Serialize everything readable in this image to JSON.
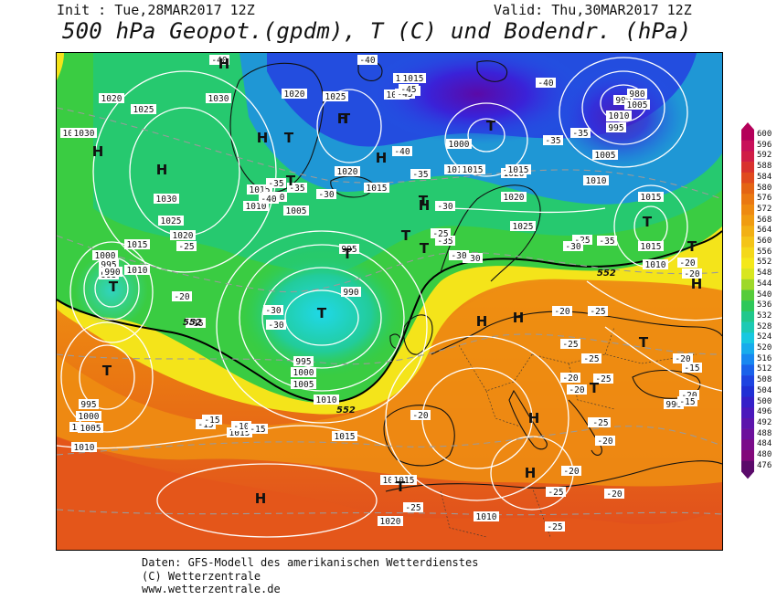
{
  "header": {
    "init": "Init : Tue,28MAR2017 12Z",
    "valid": "Valid: Thu,30MAR2017 12Z",
    "title": "500 hPa Geopot.(gpdm), T (C) und Bodendr. (hPa)"
  },
  "footer": {
    "line1": "Daten: GFS-Modell des amerikanischen Wetterdienstes",
    "line2": "(C) Wetterzentrale",
    "line3": "www.wetterzentrale.de"
  },
  "colors": {
    "lowest_violet": "#5a0a8a",
    "deep_blue": "#1e2fd8",
    "cyan": "#18c8e8",
    "green": "#2ecc4a",
    "yellow": "#f4e81a",
    "orange": "#ee8a10",
    "red": "#e0401a",
    "dark_red": "#c01030"
  },
  "legend": {
    "values": [
      "600",
      "596",
      "592",
      "588",
      "584",
      "580",
      "576",
      "572",
      "568",
      "564",
      "560",
      "556",
      "552",
      "548",
      "544",
      "540",
      "536",
      "532",
      "528",
      "524",
      "520",
      "516",
      "512",
      "508",
      "504",
      "500",
      "496",
      "492",
      "488",
      "484",
      "480",
      "476"
    ],
    "colors": [
      "#b4005a",
      "#c8105a",
      "#d01e46",
      "#d8322e",
      "#e04a1e",
      "#e46414",
      "#ea7812",
      "#ee8a10",
      "#f09c10",
      "#f2b014",
      "#f4c418",
      "#f4d81a",
      "#f4e81a",
      "#d8e620",
      "#9ed82a",
      "#56cc3a",
      "#2ec85a",
      "#20c88c",
      "#1ccab4",
      "#18c8e0",
      "#18acec",
      "#1888f0",
      "#1a62ea",
      "#1e44e0",
      "#2030d4",
      "#3420c8",
      "#4a18bc",
      "#5c14ac",
      "#6c109c",
      "#7a0c8a",
      "#82087a",
      "#5a0a6a"
    ]
  },
  "pressure_labels": [
    "1020",
    "1025",
    "1030",
    "1020",
    "1025",
    "1005",
    "1030",
    "1030",
    "1015",
    "1010",
    "1005",
    "995",
    "990",
    "995",
    "1030",
    "1025",
    "1020",
    "1015",
    "1010",
    "1000",
    "995",
    "990",
    "995",
    "1000",
    "1005",
    "1010",
    "1020",
    "1015",
    "1005",
    "1010",
    "1015",
    "1010",
    "1000",
    "990",
    "985",
    "995",
    "1005",
    "1010",
    "1015",
    "1020",
    "1025",
    "1015",
    "1010",
    "990",
    "995",
    "1000",
    "1005",
    "1010",
    "1020",
    "1015",
    "1020",
    "1025",
    "1015",
    "1015",
    "1020",
    "1015",
    "1010",
    "1015",
    "980",
    "1005",
    "1010"
  ],
  "temp_labels": [
    "-40",
    "-40",
    "-45",
    "-40",
    "-45",
    "-45",
    "-40",
    "-30",
    "-35",
    "-35",
    "-40",
    "-35",
    "-35",
    "-35",
    "-30",
    "-35",
    "-30",
    "-30",
    "-25",
    "-25",
    "-35",
    "-20",
    "-25",
    "-30",
    "-30",
    "-30",
    "-20",
    "-15",
    "-15",
    "-15",
    "-10",
    "-15",
    "-20",
    "-25",
    "-25",
    "-20",
    "-20",
    "-25",
    "-15",
    "-20",
    "-20",
    "-15",
    "-20",
    "-20",
    "-25",
    "-25",
    "-20",
    "-20",
    "-15",
    "-25",
    "-25",
    "-25",
    "-20"
  ],
  "low_marker": "T",
  "high_marker": "H",
  "contour_552": "552"
}
